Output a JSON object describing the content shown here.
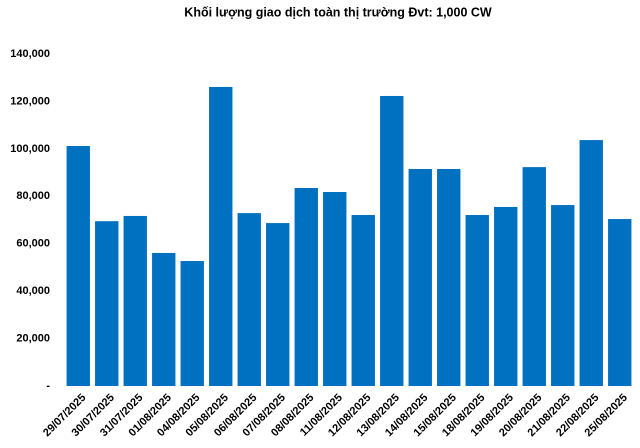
{
  "chart_data": {
    "type": "bar",
    "title": "Khối lượng giao dịch toàn thị trường Đvt: 1,000 CW",
    "categories": [
      "29/07/2025",
      "30/07/2025",
      "31/07/2025",
      "01/08/2025",
      "04/08/2025",
      "05/08/2025",
      "06/08/2025",
      "07/08/2025",
      "08/08/2025",
      "11/08/2025",
      "12/08/2025",
      "13/08/2025",
      "14/08/2025",
      "15/08/2025",
      "18/08/2025",
      "19/08/2025",
      "20/08/2025",
      "21/08/2025",
      "22/08/2025",
      "25/08/2025"
    ],
    "values": [
      101200,
      69500,
      71700,
      56100,
      52700,
      126100,
      72900,
      68700,
      83500,
      81800,
      72100,
      122300,
      91500,
      91500,
      72100,
      75500,
      92300,
      76300,
      103700,
      70400
    ],
    "color": "#0070c0",
    "ylim": [
      0,
      140000
    ],
    "yticks": [
      {
        "value": 0,
        "label": "-"
      },
      {
        "value": 20000,
        "label": "20,000"
      },
      {
        "value": 40000,
        "label": "40,000"
      },
      {
        "value": 60000,
        "label": "60,000"
      },
      {
        "value": 80000,
        "label": "80,000"
      },
      {
        "value": 100000,
        "label": "100,000"
      },
      {
        "value": 120000,
        "label": "120,000"
      },
      {
        "value": 140000,
        "label": "140,000"
      }
    ],
    "grid": false
  }
}
